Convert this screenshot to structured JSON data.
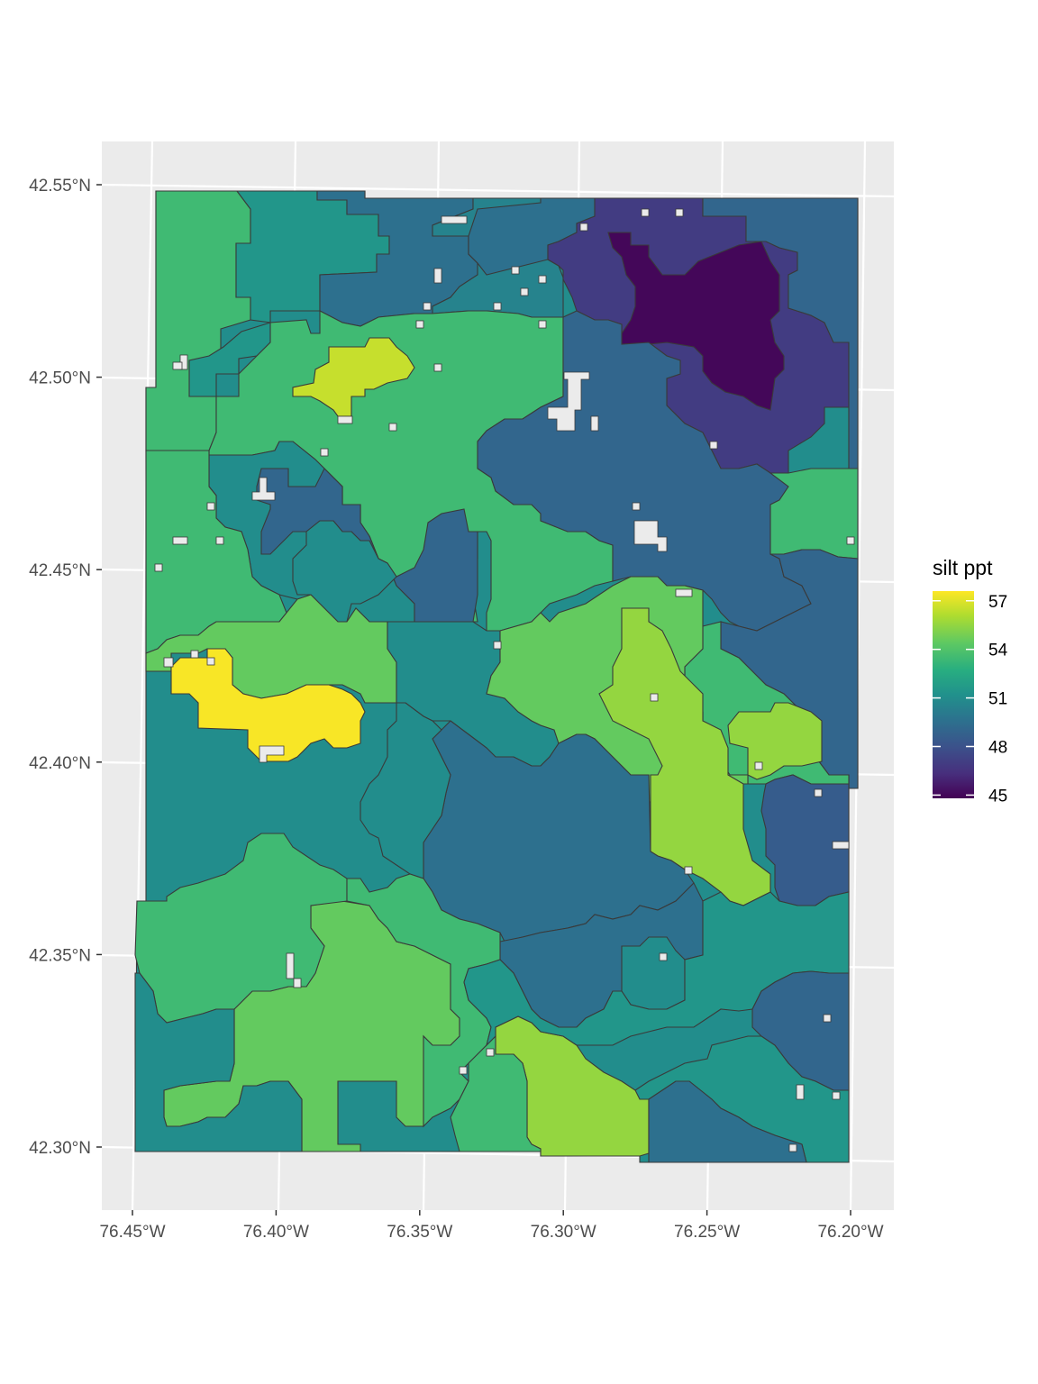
{
  "chart_data": {
    "type": "heatmap",
    "title": "",
    "xlabel": "",
    "ylabel": "",
    "variable": "silt ppt",
    "x_ticks": [
      "76.45°W",
      "76.40°W",
      "76.35°W",
      "76.30°W",
      "76.25°W",
      "76.20°W"
    ],
    "x_tick_values": [
      -76.45,
      -76.4,
      -76.35,
      -76.3,
      -76.25,
      -76.2
    ],
    "y_ticks": [
      "42.30°N",
      "42.35°N",
      "42.40°N",
      "42.45°N",
      "42.50°N",
      "42.55°N"
    ],
    "y_tick_values": [
      42.3,
      42.35,
      42.4,
      42.45,
      42.5,
      42.55
    ],
    "xlim": [
      -76.455,
      -76.19
    ],
    "ylim": [
      42.285,
      42.56
    ],
    "grid": true,
    "legend": {
      "title": "silt ppt",
      "placement": "right",
      "breaks": [
        "57",
        "54",
        "51",
        "48",
        "45"
      ],
      "break_values": [
        57,
        54,
        51,
        48,
        45
      ],
      "range": [
        44.8,
        57.6
      ],
      "colormap": "viridis"
    },
    "regions": [
      {
        "name": "west-upper-green",
        "value": 53.5
      },
      {
        "name": "northwest-teal",
        "value": 51.5
      },
      {
        "name": "north-blue",
        "value": 49.5
      },
      {
        "name": "north-center-teal",
        "value": 50.5
      },
      {
        "name": "northeast-purple",
        "value": 47.0
      },
      {
        "name": "northeast-dark",
        "value": 45.0
      },
      {
        "name": "east-purple",
        "value": 46.5
      },
      {
        "name": "east-blue",
        "value": 49.0
      },
      {
        "name": "center-green",
        "value": 53.5
      },
      {
        "name": "northwest-yellow",
        "value": 56.5
      },
      {
        "name": "west-yellow",
        "value": 57.5
      },
      {
        "name": "center-blue",
        "value": 49.0
      },
      {
        "name": "center-teal",
        "value": 51.0
      },
      {
        "name": "east-green",
        "value": 53.5
      },
      {
        "name": "east-lime",
        "value": 55.5
      },
      {
        "name": "center-light-green",
        "value": 54.5
      },
      {
        "name": "southeast-blue",
        "value": 48.5
      },
      {
        "name": "south-center-blue",
        "value": 49.5
      },
      {
        "name": "south-lime",
        "value": 55.5
      },
      {
        "name": "southwest-green",
        "value": 54.5
      },
      {
        "name": "southeast-teal",
        "value": 51.5
      },
      {
        "name": "southwest-teal",
        "value": 51.0
      }
    ]
  }
}
